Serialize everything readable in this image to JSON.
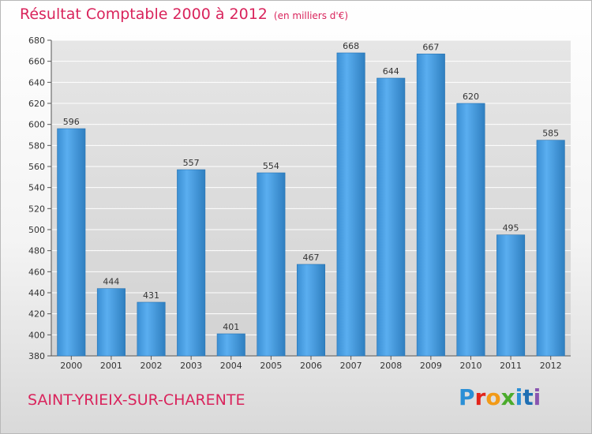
{
  "header": {
    "title": "Résultat Comptable 2000 à 2012",
    "subtitle": "(en milliers d'€)"
  },
  "footer": {
    "commune": "SAINT-YRIEIX-SUR-CHARENTE",
    "logo_text": "Proxiti",
    "logo_colors": [
      "#2a8fd6",
      "#e2241b",
      "#f29a17",
      "#4bab2c",
      "#2a8fd6",
      "#1f6fb3",
      "#8a55b0"
    ]
  },
  "chart_data": {
    "type": "bar",
    "title": "Résultat Comptable 2000 à 2012",
    "subtitle": "(en milliers d'€)",
    "categories": [
      "2000",
      "2001",
      "2002",
      "2003",
      "2004",
      "2005",
      "2006",
      "2007",
      "2008",
      "2009",
      "2010",
      "2011",
      "2012"
    ],
    "values": [
      596,
      444,
      431,
      557,
      401,
      554,
      467,
      668,
      644,
      667,
      620,
      495,
      585
    ],
    "data_labels": [
      "596",
      "444",
      "431",
      "557",
      "401",
      "554",
      "467",
      "668",
      "644",
      "667",
      "620",
      "495",
      "585"
    ],
    "ylim": [
      380,
      680
    ],
    "yticks": [
      380,
      400,
      420,
      440,
      460,
      480,
      500,
      520,
      540,
      560,
      580,
      600,
      620,
      640,
      660,
      680
    ],
    "ytick_labels": [
      "380",
      "400",
      "420",
      "440",
      "460",
      "480",
      "500",
      "520",
      "540",
      "560",
      "580",
      "600",
      "620",
      "640",
      "660",
      "680"
    ],
    "grid": true,
    "bar_color": "#4a9fe0",
    "bar_color_dark": "#2f7fc0",
    "plot_background": "#dcdcdc"
  }
}
